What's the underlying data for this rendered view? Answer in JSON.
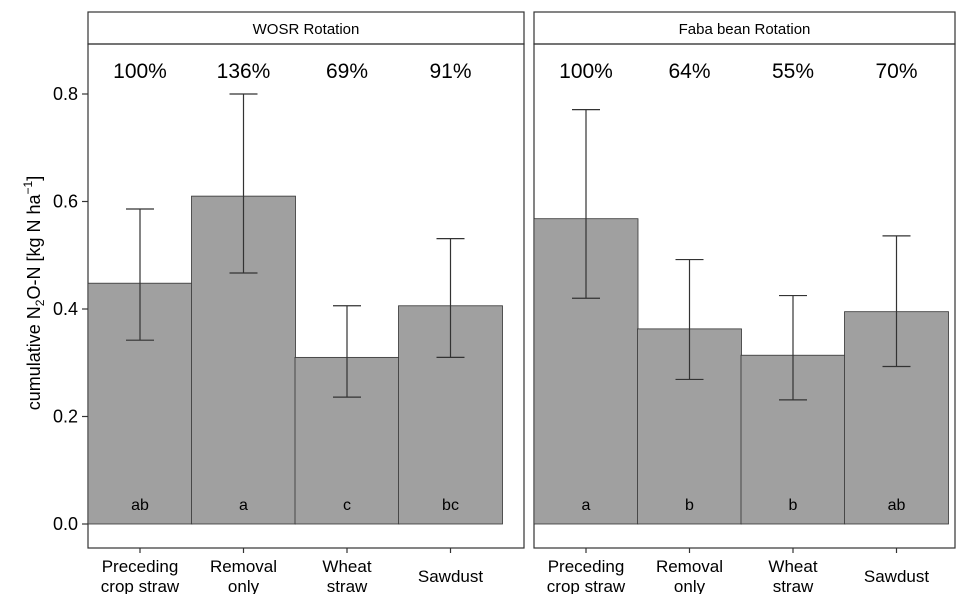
{
  "chart_data": {
    "type": "bar",
    "ylabel": {
      "prefix": "cumulative N",
      "sub": "2",
      "middle": "O-N [kg N ha",
      "sup": "−1",
      "suffix": "]"
    },
    "ylim": [
      0,
      0.9
    ],
    "yticks": [
      "0.0",
      "0.2",
      "0.4",
      "0.6",
      "0.8"
    ],
    "grid": false,
    "panels": [
      {
        "title": "WOSR Rotation",
        "categories": [
          [
            "Preceding",
            "crop straw"
          ],
          [
            "Removal",
            "only"
          ],
          [
            "Wheat",
            "straw"
          ],
          [
            "Sawdust"
          ]
        ],
        "values": [
          0.448,
          0.61,
          0.31,
          0.406
        ],
        "error_low": [
          0.342,
          0.467,
          0.236,
          0.31
        ],
        "error_high": [
          0.586,
          0.8,
          0.406,
          0.531
        ],
        "percent_labels": [
          "100%",
          "136%",
          "69%",
          "91%"
        ],
        "significance": [
          "ab",
          "a",
          "c",
          "bc"
        ]
      },
      {
        "title": "Faba bean Rotation",
        "categories": [
          [
            "Preceding",
            "crop straw"
          ],
          [
            "Removal",
            "only"
          ],
          [
            "Wheat",
            "straw"
          ],
          [
            "Sawdust"
          ]
        ],
        "values": [
          0.568,
          0.363,
          0.314,
          0.395
        ],
        "error_low": [
          0.42,
          0.269,
          0.231,
          0.293
        ],
        "error_high": [
          0.771,
          0.492,
          0.425,
          0.536
        ],
        "percent_labels": [
          "100%",
          "64%",
          "55%",
          "70%"
        ],
        "significance": [
          "a",
          "b",
          "b",
          "ab"
        ]
      }
    ],
    "colors": {
      "bar": "#a0a0a0",
      "bar_edge": "#333333",
      "strip": "#ffffff",
      "line": "#333333"
    }
  }
}
